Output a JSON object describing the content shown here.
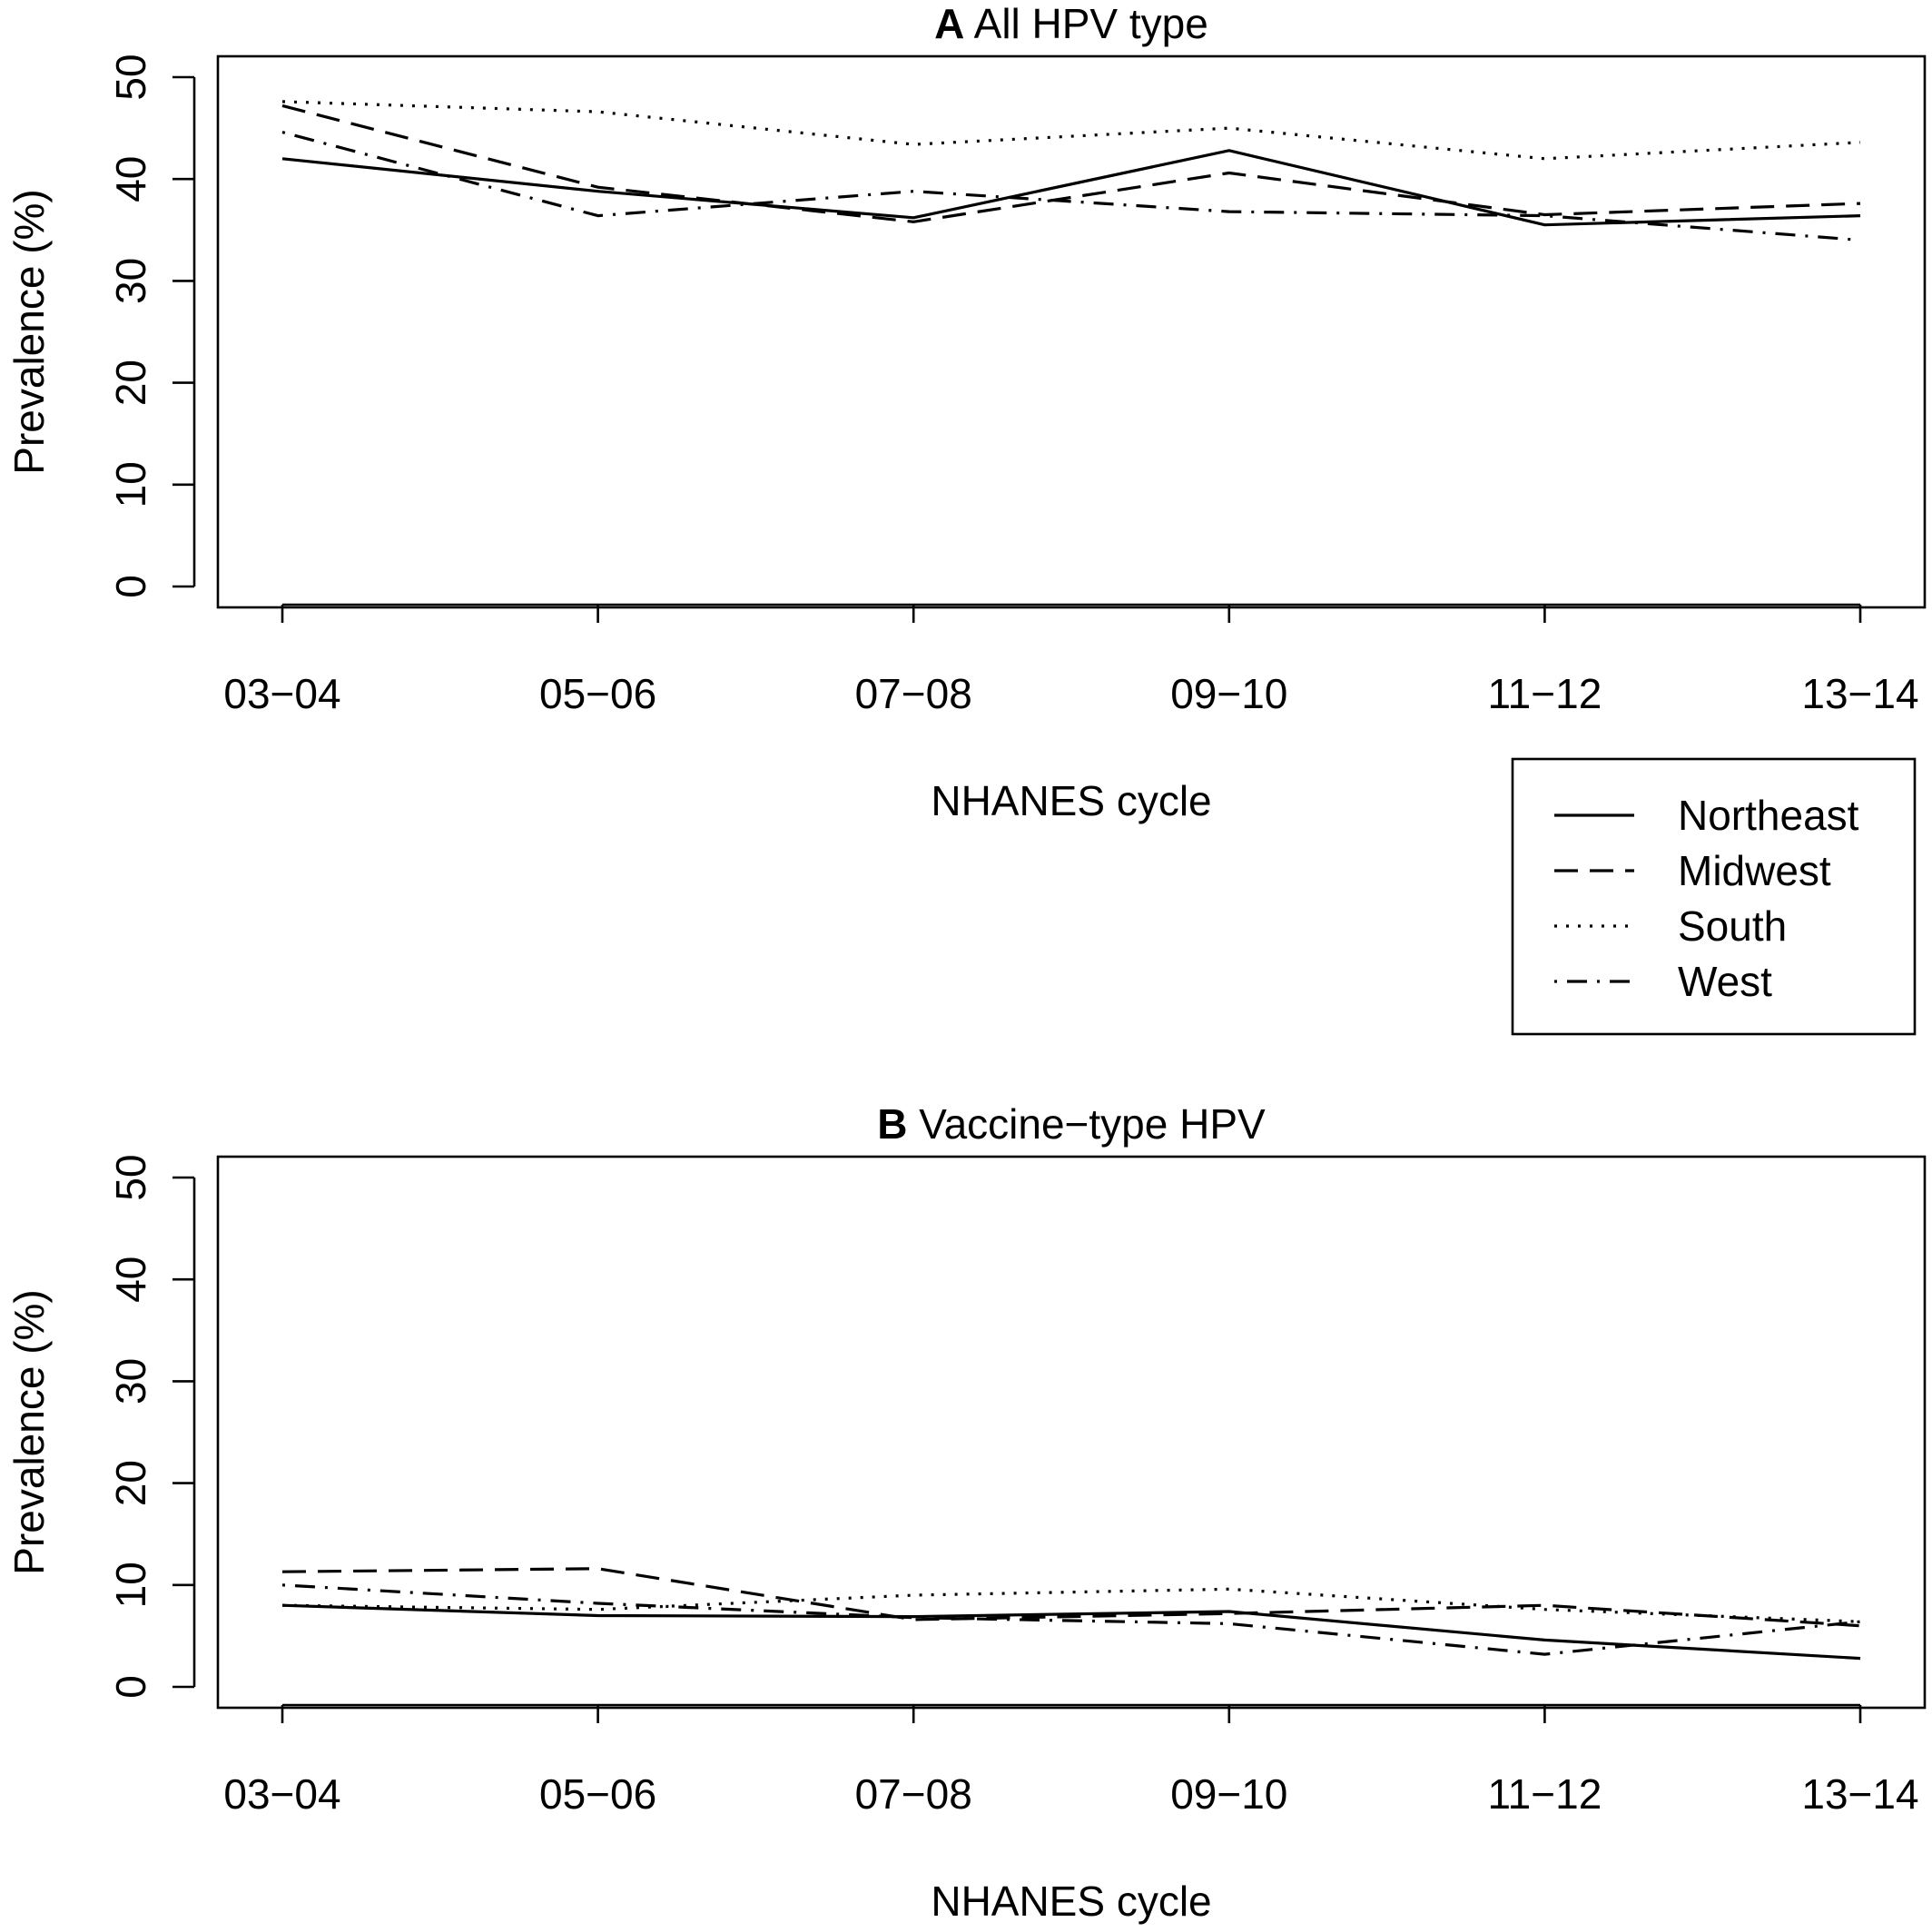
{
  "chart_data": [
    {
      "type": "line",
      "title_bold": "A",
      "title": "All HPV type",
      "xlabel": "NHANES cycle",
      "ylabel": "Prevalence (%)",
      "categories": [
        "03−04",
        "05−06",
        "07−08",
        "09−10",
        "11−12",
        "13−14"
      ],
      "yticks": [
        "0",
        "10",
        "20",
        "30",
        "40",
        "50"
      ],
      "ylim": [
        0,
        50
      ],
      "grid": false,
      "series": [
        {
          "name": "Northeast",
          "dash": "solid",
          "values": [
            42.0,
            38.8,
            36.2,
            42.8,
            35.5,
            36.4
          ]
        },
        {
          "name": "Midwest",
          "dash": "dashed",
          "values": [
            47.2,
            39.2,
            35.8,
            40.6,
            36.5,
            37.6
          ]
        },
        {
          "name": "South",
          "dash": "dotted",
          "values": [
            47.6,
            46.6,
            43.4,
            45.0,
            42.0,
            43.6
          ]
        },
        {
          "name": "West",
          "dash": "dotdash",
          "values": [
            44.6,
            36.4,
            38.8,
            36.8,
            36.4,
            34.0
          ]
        }
      ]
    },
    {
      "type": "line",
      "title_bold": "B",
      "title": "Vaccine−type HPV",
      "xlabel": "NHANES cycle",
      "ylabel": "Prevalence (%)",
      "categories": [
        "03−04",
        "05−06",
        "07−08",
        "09−10",
        "11−12",
        "13−14"
      ],
      "yticks": [
        "0",
        "10",
        "20",
        "30",
        "40",
        "50"
      ],
      "ylim": [
        0,
        50
      ],
      "grid": false,
      "series": [
        {
          "name": "Northeast",
          "dash": "solid",
          "values": [
            8.0,
            7.0,
            6.9,
            7.4,
            4.6,
            2.8
          ]
        },
        {
          "name": "Midwest",
          "dash": "dashed",
          "values": [
            11.3,
            11.6,
            6.6,
            7.2,
            8.0,
            6.0
          ]
        },
        {
          "name": "South",
          "dash": "dotted",
          "values": [
            8.0,
            7.6,
            9.0,
            9.6,
            7.6,
            6.4
          ]
        },
        {
          "name": "West",
          "dash": "dotdash",
          "values": [
            10.0,
            8.2,
            6.8,
            6.2,
            3.2,
            6.4
          ]
        }
      ]
    }
  ],
  "legend": {
    "placement": "right, between panels",
    "entries": [
      {
        "label": "Northeast",
        "dash": "solid"
      },
      {
        "label": "Midwest",
        "dash": "dashed"
      },
      {
        "label": "South",
        "dash": "dotted"
      },
      {
        "label": "West",
        "dash": "dotdash"
      }
    ]
  }
}
